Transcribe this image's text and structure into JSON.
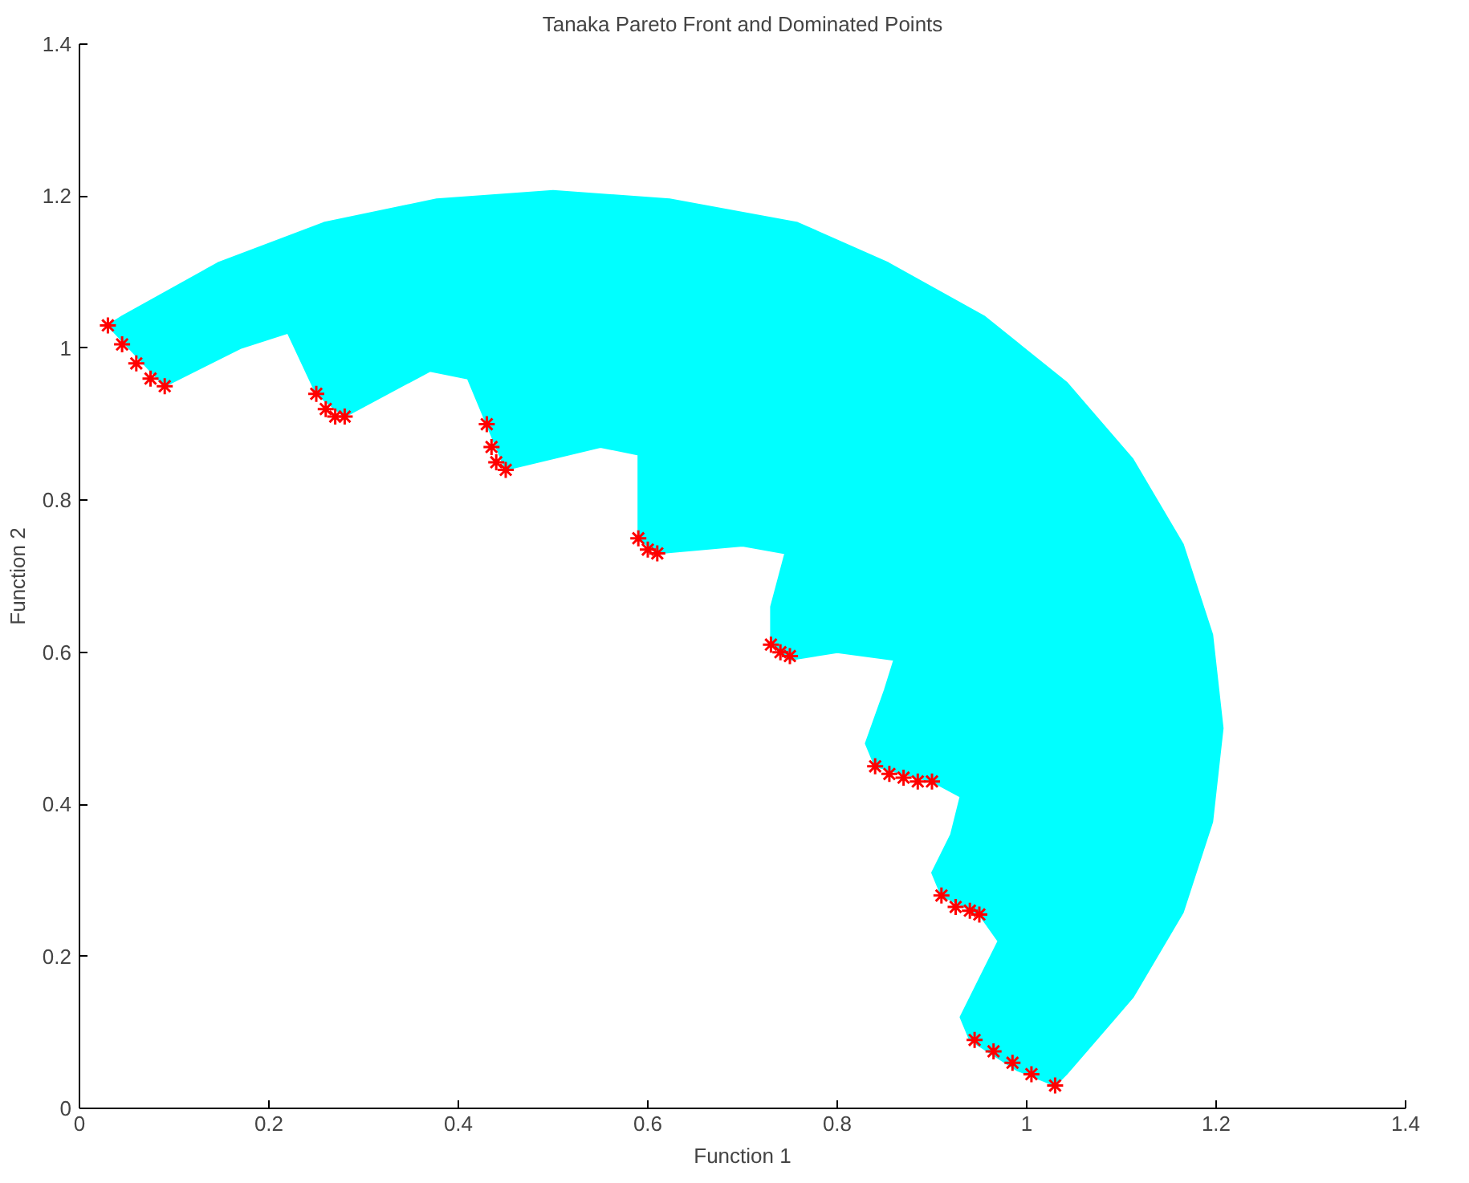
{
  "chart_data": {
    "type": "scatter",
    "title": "Tanaka Pareto Front and Dominated Points",
    "xlabel": "Function 1",
    "ylabel": "Function 2",
    "xlim": [
      0,
      1.4
    ],
    "ylim": [
      0,
      1.4
    ],
    "xticks": [
      0,
      0.2,
      0.4,
      0.6,
      0.8,
      1,
      1.2,
      1.4
    ],
    "yticks": [
      0,
      0.2,
      0.4,
      0.6,
      0.8,
      1,
      1.2,
      1.4
    ],
    "grid": false,
    "series": [
      {
        "type": "area",
        "color": "#00ffff",
        "x": [
          0.03,
          0.045,
          0.146,
          0.258,
          0.377,
          0.5,
          0.623,
          0.758,
          0.854,
          0.955,
          1.042,
          1.112,
          1.165,
          1.196,
          1.207,
          1.196,
          1.165,
          1.112,
          1.042,
          1.03,
          0.99,
          0.94,
          0.93,
          0.95,
          0.97,
          0.95,
          0.91,
          0.9,
          0.92,
          0.93,
          0.9,
          0.84,
          0.83,
          0.85,
          0.86,
          0.8,
          0.75,
          0.73,
          0.73,
          0.745,
          0.7,
          0.61,
          0.59,
          0.59,
          0.59,
          0.55,
          0.45,
          0.43,
          0.41,
          0.37,
          0.28,
          0.25,
          0.22,
          0.17,
          0.09
        ],
        "values": [
          1.03,
          1.042,
          1.112,
          1.165,
          1.196,
          1.207,
          1.196,
          1.165,
          1.112,
          1.042,
          0.955,
          0.854,
          0.742,
          0.623,
          0.5,
          0.377,
          0.258,
          0.146,
          0.045,
          0.03,
          0.05,
          0.09,
          0.12,
          0.17,
          0.22,
          0.255,
          0.28,
          0.31,
          0.36,
          0.41,
          0.43,
          0.45,
          0.48,
          0.55,
          0.59,
          0.6,
          0.59,
          0.61,
          0.66,
          0.73,
          0.74,
          0.73,
          0.75,
          0.8,
          0.86,
          0.87,
          0.84,
          0.9,
          0.96,
          0.97,
          0.91,
          0.94,
          1.02,
          1.0,
          0.95
        ]
      },
      {
        "color": "#ff0000",
        "marker": "cross",
        "x": [
          0.03,
          0.045,
          0.06,
          0.075,
          0.09,
          0.25,
          0.26,
          0.27,
          0.28,
          0.43,
          0.435,
          0.44,
          0.45,
          0.59,
          0.6,
          0.61,
          0.73,
          0.74,
          0.75,
          0.84,
          0.855,
          0.87,
          0.885,
          0.9,
          0.91,
          0.925,
          0.94,
          0.95,
          0.945,
          0.965,
          0.985,
          1.005,
          1.03
        ],
        "values": [
          1.03,
          1.005,
          0.98,
          0.96,
          0.95,
          0.94,
          0.92,
          0.91,
          0.91,
          0.9,
          0.87,
          0.85,
          0.84,
          0.75,
          0.735,
          0.73,
          0.61,
          0.6,
          0.595,
          0.45,
          0.44,
          0.435,
          0.43,
          0.43,
          0.28,
          0.265,
          0.26,
          0.255,
          0.09,
          0.075,
          0.06,
          0.045,
          0.03
        ]
      }
    ]
  }
}
